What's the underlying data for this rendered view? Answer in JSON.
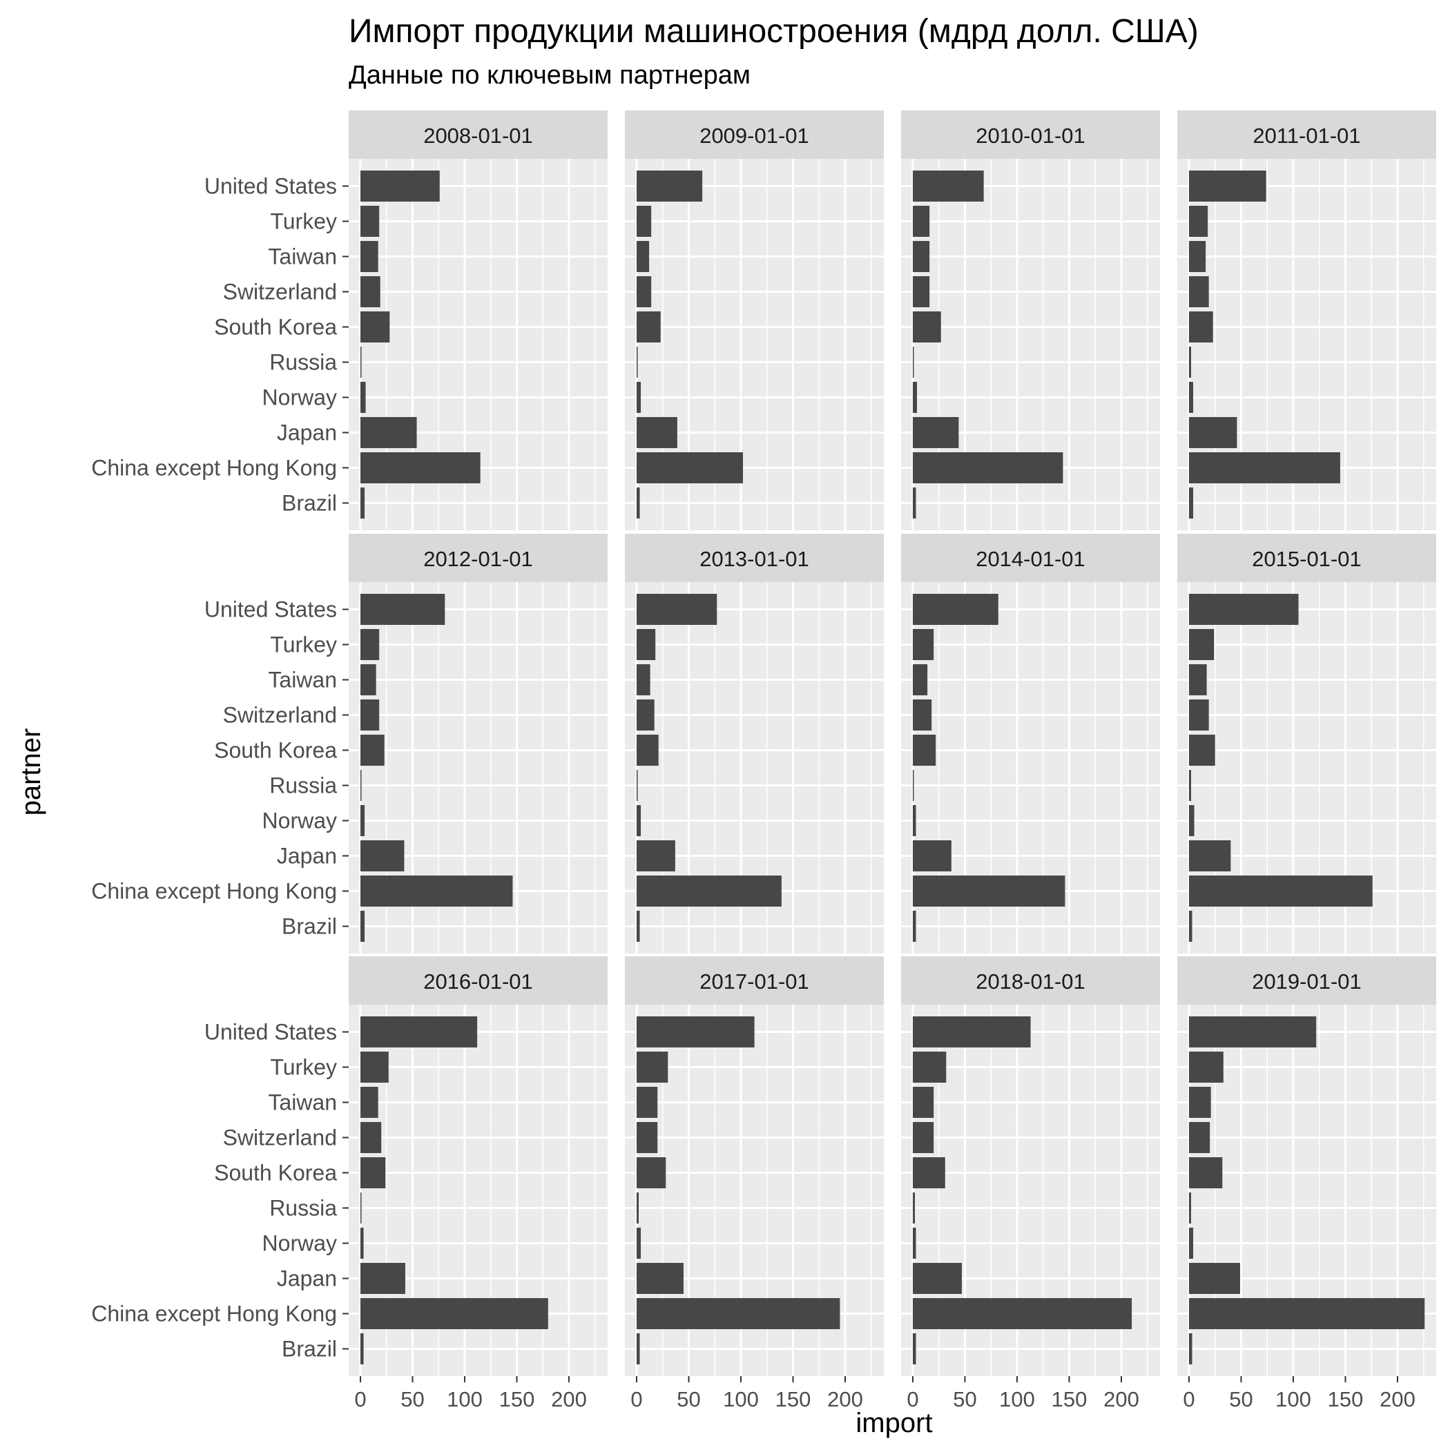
{
  "chart_data": {
    "type": "bar",
    "orientation": "horizontal",
    "title": "Импорт продукции машиностроения (мдрд долл. США)",
    "subtitle": "Данные по ключевым партнерам",
    "xlabel": "import",
    "ylabel": "partner",
    "xlim": [
      0,
      235
    ],
    "x_ticks": [
      0,
      50,
      100,
      150,
      200
    ],
    "grid": true,
    "facet_rows": 3,
    "facet_cols": 4,
    "categories": [
      "United States",
      "Turkey",
      "Taiwan",
      "Switzerland",
      "South Korea",
      "Russia",
      "Norway",
      "Japan",
      "China except Hong Kong",
      "Brazil"
    ],
    "bar_color": "#474747",
    "panel_background": "#ebebeb",
    "strip_background": "#d9d9d9",
    "facets": [
      {
        "label": "2008-01-01",
        "values": [
          76,
          18,
          17,
          19,
          28,
          1,
          5,
          54,
          115,
          4
        ]
      },
      {
        "label": "2009-01-01",
        "values": [
          63,
          14,
          12,
          14,
          23,
          1,
          4,
          39,
          102,
          3
        ]
      },
      {
        "label": "2010-01-01",
        "values": [
          68,
          16,
          16,
          16,
          27,
          1,
          4,
          44,
          144,
          3
        ]
      },
      {
        "label": "2011-01-01",
        "values": [
          74,
          18,
          16,
          19,
          23,
          2,
          4,
          46,
          145,
          4
        ]
      },
      {
        "label": "2012-01-01",
        "values": [
          81,
          18,
          15,
          18,
          23,
          1,
          4,
          42,
          146,
          4
        ]
      },
      {
        "label": "2013-01-01",
        "values": [
          77,
          18,
          13,
          17,
          21,
          1,
          4,
          37,
          139,
          3
        ]
      },
      {
        "label": "2014-01-01",
        "values": [
          82,
          20,
          14,
          18,
          22,
          1,
          3,
          37,
          146,
          3
        ]
      },
      {
        "label": "2015-01-01",
        "values": [
          105,
          24,
          17,
          19,
          25,
          2,
          5,
          40,
          176,
          3
        ]
      },
      {
        "label": "2016-01-01",
        "values": [
          112,
          27,
          17,
          20,
          24,
          1,
          3,
          43,
          180,
          3
        ]
      },
      {
        "label": "2017-01-01",
        "values": [
          113,
          30,
          20,
          20,
          28,
          2,
          4,
          45,
          195,
          3
        ]
      },
      {
        "label": "2018-01-01",
        "values": [
          113,
          32,
          20,
          20,
          31,
          2,
          3,
          47,
          210,
          3
        ]
      },
      {
        "label": "2019-01-01",
        "values": [
          122,
          33,
          21,
          20,
          32,
          2,
          4,
          49,
          226,
          3
        ]
      }
    ]
  }
}
